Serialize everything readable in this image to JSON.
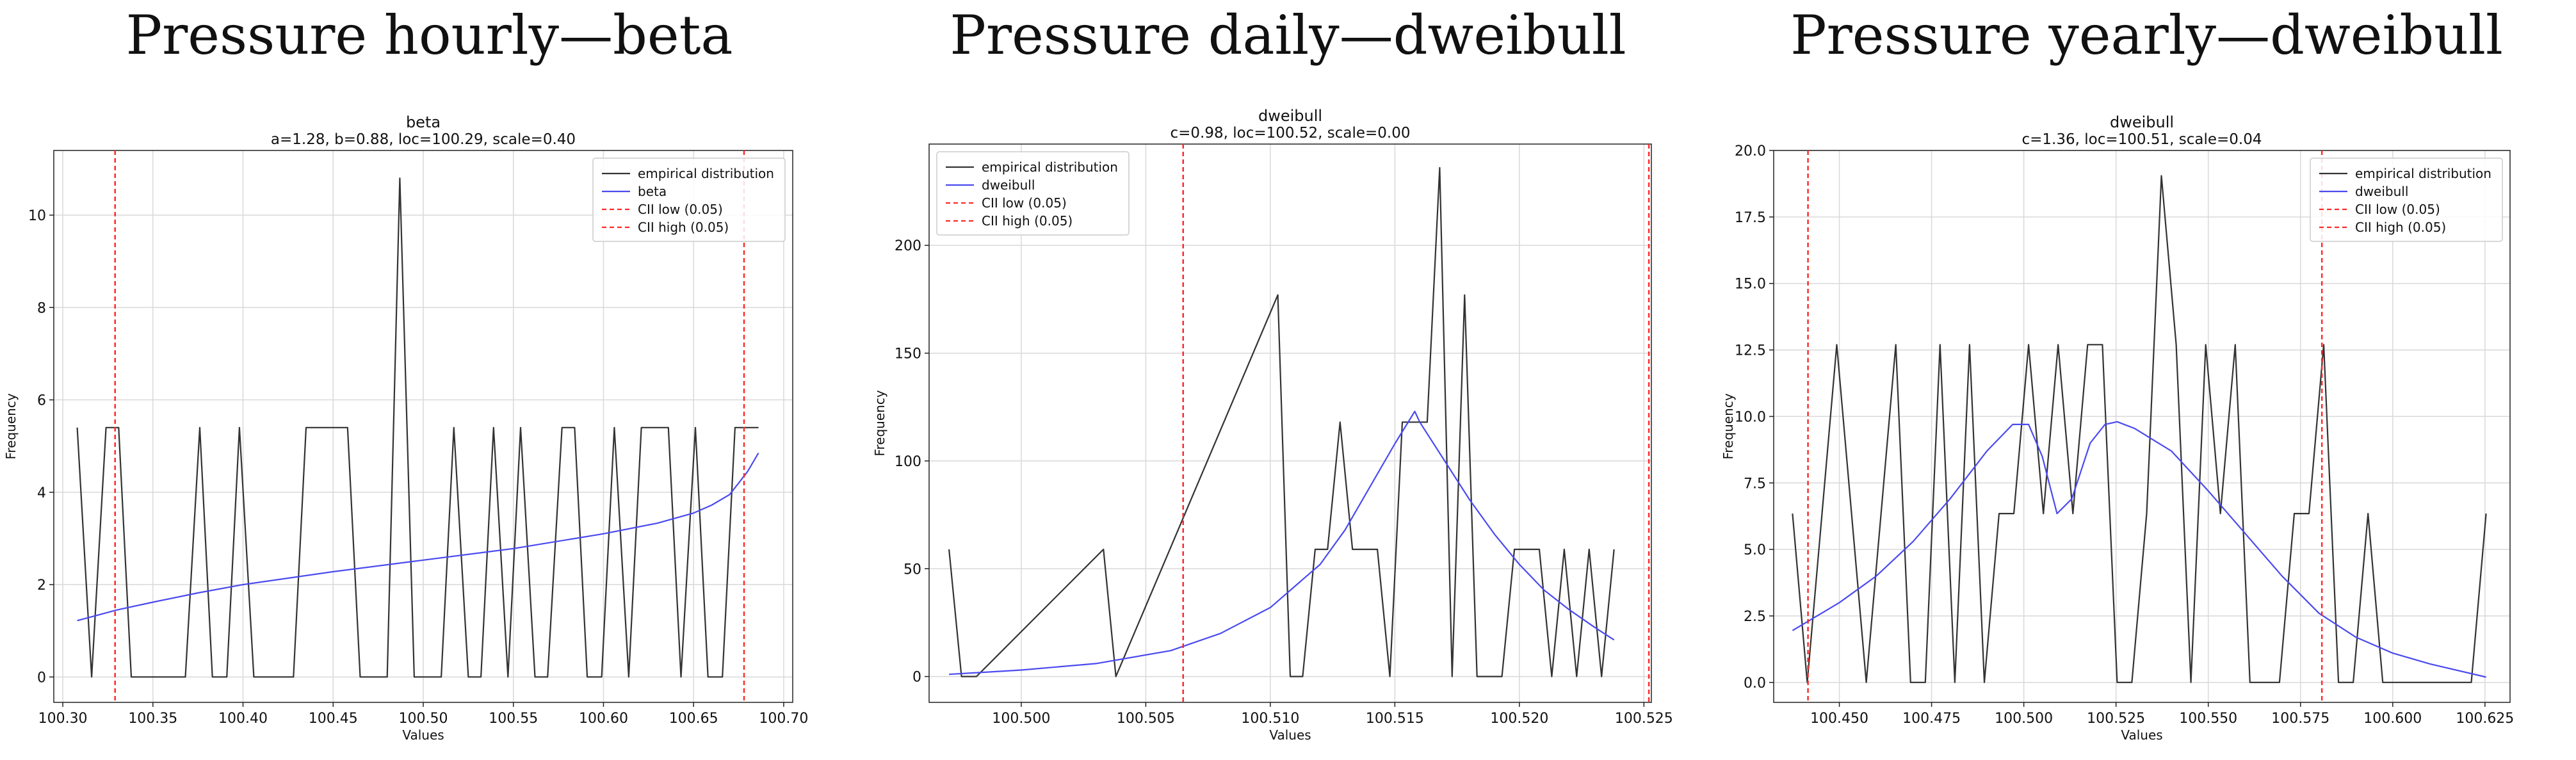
{
  "panels": [
    {
      "heading": "Pressure hourly—beta"
    },
    {
      "heading": "Pressure daily—dweibull"
    },
    {
      "heading": "Pressure yearly—dweibull"
    }
  ],
  "colors": {
    "empirical": "#333333",
    "fit": "#4a4af0",
    "cii": "#ff2a2a",
    "grid": "#d9d9d9"
  },
  "chart_data": [
    {
      "type": "line",
      "title": "beta",
      "subtitle": "a=1.28, b=0.88, loc=100.29, scale=0.40",
      "xlabel": "Values",
      "ylabel": "Frequency",
      "xlim": [
        100.295,
        100.705
      ],
      "ylim": [
        -0.55,
        11.4
      ],
      "xticks": [
        100.3,
        100.35,
        100.4,
        100.45,
        100.5,
        100.55,
        100.6,
        100.65,
        100.7
      ],
      "xtick_labels": [
        "100.30",
        "100.35",
        "100.40",
        "100.45",
        "100.50",
        "100.55",
        "100.60",
        "100.65",
        "100.70"
      ],
      "yticks": [
        0,
        2,
        4,
        6,
        8,
        10
      ],
      "ytick_labels": [
        "0",
        "2",
        "4",
        "6",
        "8",
        "10"
      ],
      "grid": true,
      "legend_position": "top-right",
      "legend": [
        "empirical distribution",
        "beta",
        "CII low (0.05)",
        "CII high (0.05)"
      ],
      "cii_low": 100.329,
      "cii_high": 100.678,
      "series": [
        {
          "name": "empirical distribution",
          "x": [
            100.308,
            100.316,
            100.324,
            100.331,
            100.338,
            100.346,
            100.353,
            100.361,
            100.368,
            100.376,
            100.383,
            100.391,
            100.398,
            100.406,
            100.413,
            100.421,
            100.428,
            100.435,
            100.443,
            100.45,
            100.458,
            100.465,
            100.473,
            100.48,
            100.487,
            100.495,
            100.502,
            100.51,
            100.517,
            100.525,
            100.532,
            100.539,
            100.547,
            100.554,
            100.562,
            100.569,
            100.577,
            100.584,
            100.591,
            100.599,
            100.606,
            100.614,
            100.621,
            100.629,
            100.636,
            100.643,
            100.651,
            100.658,
            100.666,
            100.673,
            100.681,
            100.686
          ],
          "y": [
            5.4,
            0,
            5.4,
            5.4,
            0,
            0,
            0,
            0,
            0,
            5.4,
            0,
            0,
            5.4,
            0,
            0,
            0,
            0,
            5.4,
            5.4,
            5.4,
            5.4,
            0,
            0,
            0,
            10.8,
            0,
            0,
            0,
            5.4,
            0,
            0,
            5.4,
            0,
            5.4,
            0,
            0,
            5.4,
            5.4,
            0,
            0,
            5.4,
            0,
            5.4,
            5.4,
            5.4,
            0,
            5.4,
            0,
            0,
            5.4,
            5.4,
            5.4
          ]
        },
        {
          "name": "beta",
          "x": [
            100.308,
            100.33,
            100.35,
            100.375,
            100.4,
            100.45,
            100.5,
            100.55,
            100.6,
            100.63,
            100.65,
            100.66,
            100.67,
            100.675,
            100.68,
            100.686
          ],
          "y": [
            1.22,
            1.45,
            1.62,
            1.82,
            2.0,
            2.28,
            2.53,
            2.78,
            3.1,
            3.33,
            3.55,
            3.72,
            3.95,
            4.2,
            4.45,
            4.85
          ]
        }
      ]
    },
    {
      "type": "line",
      "title": "dweibull",
      "subtitle": "c=0.98, loc=100.52, scale=0.00",
      "xlabel": "Values",
      "ylabel": "Frequency",
      "xlim": [
        100.4963,
        100.5253
      ],
      "ylim": [
        -12,
        247
      ],
      "xticks": [
        100.5,
        100.505,
        100.51,
        100.515,
        100.52,
        100.525
      ],
      "xtick_labels": [
        "100.500",
        "100.505",
        "100.510",
        "100.515",
        "100.520",
        "100.525"
      ],
      "yticks": [
        0,
        50,
        100,
        150,
        200
      ],
      "ytick_labels": [
        "0",
        "50",
        "100",
        "150",
        "200"
      ],
      "grid": true,
      "legend_position": "top-left",
      "legend": [
        "empirical distribution",
        "dweibull",
        "CII low (0.05)",
        "CII high (0.05)"
      ],
      "cii_low": 100.5065,
      "cii_high": 100.5252,
      "series": [
        {
          "name": "empirical distribution",
          "x": [
            100.4971,
            100.4976,
            100.4982,
            100.5033,
            100.5038,
            100.5103,
            100.5108,
            100.5113,
            100.5118,
            100.5123,
            100.5128,
            100.5133,
            100.5138,
            100.5143,
            100.5148,
            100.5153,
            100.5158,
            100.5163,
            100.5168,
            100.5173,
            100.5178,
            100.5183,
            100.5188,
            100.5193,
            100.5198,
            100.5203,
            100.5208,
            100.5213,
            100.5218,
            100.5223,
            100.5228,
            100.5233,
            100.5238
          ],
          "y": [
            59,
            0,
            0,
            59,
            0,
            177,
            0,
            0,
            59,
            59,
            118,
            59,
            59,
            59,
            0,
            118,
            118,
            118,
            236,
            0,
            177,
            0,
            0,
            0,
            59,
            59,
            59,
            0,
            59,
            0,
            59,
            0,
            59
          ]
        },
        {
          "name": "dweibull",
          "x": [
            100.4971,
            100.5,
            100.503,
            100.506,
            100.508,
            100.51,
            100.512,
            100.513,
            100.514,
            100.515,
            100.5158,
            100.516,
            100.517,
            100.518,
            100.519,
            100.52,
            100.521,
            100.522,
            100.523,
            100.5238
          ],
          "y": [
            1,
            3,
            6,
            12,
            20,
            32,
            52,
            68,
            88,
            108,
            123,
            118,
            100,
            82,
            66,
            52,
            40,
            31,
            23,
            17
          ]
        }
      ]
    },
    {
      "type": "line",
      "title": "dweibull",
      "subtitle": "c=1.36, loc=100.51, scale=0.04",
      "xlabel": "Values",
      "ylabel": "Frequency",
      "xlim": [
        100.4322,
        100.6318
      ],
      "ylim": [
        -0.75,
        20.0
      ],
      "xticks": [
        100.45,
        100.475,
        100.5,
        100.525,
        100.55,
        100.575,
        100.6,
        100.625
      ],
      "xtick_labels": [
        "100.450",
        "100.475",
        "100.500",
        "100.525",
        "100.550",
        "100.575",
        "100.600",
        "100.625"
      ],
      "yticks": [
        0.0,
        2.5,
        5.0,
        7.5,
        10.0,
        12.5,
        15.0,
        17.5,
        20.0
      ],
      "ytick_labels": [
        "0.0",
        "2.5",
        "5.0",
        "7.5",
        "10.0",
        "12.5",
        "15.0",
        "17.5",
        "20.0"
      ],
      "grid": true,
      "legend_position": "top-right",
      "legend": [
        "empirical distribution",
        "dweibull",
        "CII low (0.05)",
        "CII high (0.05)"
      ],
      "cii_low": 100.4415,
      "cii_high": 100.5808,
      "series": [
        {
          "name": "empirical distribution",
          "x": [
            100.4373,
            100.4413,
            100.4453,
            100.4493,
            100.4533,
            100.4573,
            100.4613,
            100.4653,
            100.4693,
            100.4733,
            100.4773,
            100.4813,
            100.4853,
            100.4893,
            100.4933,
            100.4973,
            100.5013,
            100.5053,
            100.5093,
            100.5133,
            100.5173,
            100.5213,
            100.5253,
            100.5293,
            100.5333,
            100.5373,
            100.5413,
            100.5453,
            100.5493,
            100.5533,
            100.5573,
            100.5613,
            100.5653,
            100.5693,
            100.5733,
            100.5773,
            100.5813,
            100.5853,
            100.5893,
            100.5933,
            100.5973,
            100.6013,
            100.6053,
            100.6093,
            100.6133,
            100.6173,
            100.6213,
            100.6253
          ],
          "y": [
            6.35,
            0,
            6.35,
            12.7,
            6.35,
            0,
            6.35,
            12.7,
            0,
            0,
            12.7,
            0,
            12.7,
            0,
            6.35,
            6.35,
            12.7,
            6.35,
            12.7,
            6.35,
            12.7,
            12.7,
            0,
            0,
            6.35,
            19.05,
            12.7,
            0,
            12.7,
            6.35,
            12.7,
            0,
            0,
            0,
            6.35,
            6.35,
            12.7,
            0,
            0,
            6.35,
            0,
            0,
            0,
            0,
            0,
            0,
            0,
            6.35
          ]
        },
        {
          "name": "dweibull",
          "x": [
            100.4373,
            100.45,
            100.46,
            100.47,
            100.48,
            100.49,
            100.497,
            100.5013,
            100.505,
            100.509,
            100.513,
            100.518,
            100.522,
            100.5253,
            100.53,
            100.54,
            100.55,
            100.56,
            100.57,
            100.58,
            100.59,
            100.6,
            100.61,
            100.6253
          ],
          "y": [
            1.95,
            3.0,
            4.0,
            5.3,
            6.9,
            8.7,
            9.7,
            9.7,
            8.5,
            6.35,
            6.9,
            9.0,
            9.7,
            9.8,
            9.55,
            8.7,
            7.2,
            5.6,
            4.0,
            2.6,
            1.7,
            1.1,
            0.7,
            0.2
          ]
        }
      ]
    }
  ]
}
